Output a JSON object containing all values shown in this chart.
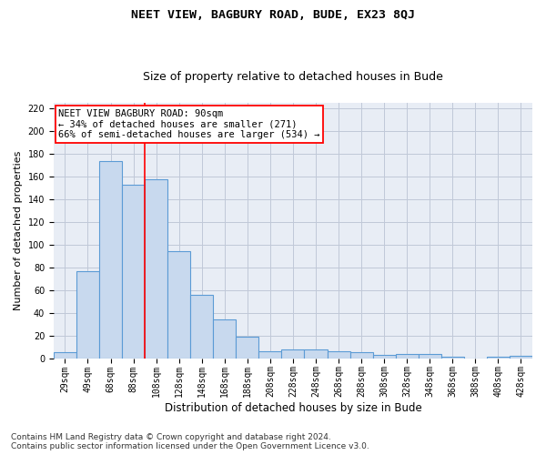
{
  "title_line1": "NEET VIEW, BAGBURY ROAD, BUDE, EX23 8QJ",
  "title_line2": "Size of property relative to detached houses in Bude",
  "xlabel": "Distribution of detached houses by size in Bude",
  "ylabel": "Number of detached properties",
  "footnote": "Contains HM Land Registry data © Crown copyright and database right 2024.\nContains public sector information licensed under the Open Government Licence v3.0.",
  "bar_labels": [
    "29sqm",
    "49sqm",
    "68sqm",
    "88sqm",
    "108sqm",
    "128sqm",
    "148sqm",
    "168sqm",
    "188sqm",
    "208sqm",
    "228sqm",
    "248sqm",
    "268sqm",
    "288sqm",
    "308sqm",
    "328sqm",
    "348sqm",
    "368sqm",
    "388sqm",
    "408sqm",
    "428sqm"
  ],
  "bar_values": [
    5,
    77,
    174,
    153,
    158,
    94,
    56,
    34,
    19,
    6,
    8,
    8,
    6,
    5,
    3,
    4,
    4,
    1,
    0,
    1,
    2
  ],
  "bar_color": "#c8d9ee",
  "bar_edge_color": "#5b9bd5",
  "bar_edge_width": 0.8,
  "annotation_text": "NEET VIEW BAGBURY ROAD: 90sqm\n← 34% of detached houses are smaller (271)\n66% of semi-detached houses are larger (534) →",
  "annotation_box_color": "white",
  "annotation_box_edge": "red",
  "vline_color": "red",
  "vline_x_index": 3.5,
  "ylim": [
    0,
    225
  ],
  "yticks": [
    0,
    20,
    40,
    60,
    80,
    100,
    120,
    140,
    160,
    180,
    200,
    220
  ],
  "grid_color": "#c0c8d8",
  "bg_color": "#e8edf5",
  "title1_fontsize": 9.5,
  "title2_fontsize": 9,
  "xlabel_fontsize": 8.5,
  "ylabel_fontsize": 8,
  "annotation_fontsize": 7.5,
  "tick_fontsize": 7,
  "footnote_fontsize": 6.5
}
